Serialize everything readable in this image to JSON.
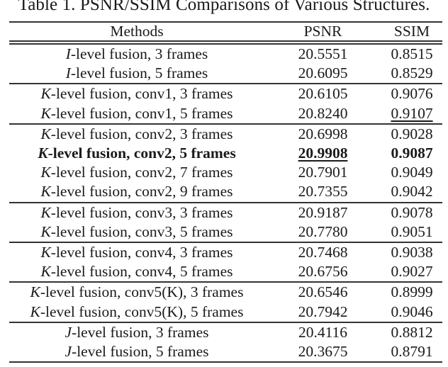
{
  "title": "Table 1. PSNR/SSIM Comparisons of Various Structures.",
  "colors": {
    "background": "#ffffff",
    "text": "#1a1a1a",
    "rule": "#333333"
  },
  "table": {
    "columns": [
      "Methods",
      "PSNR",
      "SSIM"
    ],
    "rows": [
      {
        "method_prefix": "I",
        "method_rest": "-level fusion, 3 frames",
        "psnr": "20.5551",
        "ssim": "0.8515",
        "rule_above": false,
        "bold": false,
        "psnr_underline": false,
        "ssim_underline": false
      },
      {
        "method_prefix": "I",
        "method_rest": "-level fusion, 5 frames",
        "psnr": "20.6095",
        "ssim": "0.8529",
        "rule_above": false,
        "bold": false,
        "psnr_underline": false,
        "ssim_underline": false
      },
      {
        "method_prefix": "K",
        "method_rest": "-level fusion, conv1, 3 frames",
        "psnr": "20.6105",
        "ssim": "0.9076",
        "rule_above": true,
        "bold": false,
        "psnr_underline": false,
        "ssim_underline": false
      },
      {
        "method_prefix": "K",
        "method_rest": "-level fusion, conv1, 5 frames",
        "psnr": "20.8240",
        "ssim": "0.9107",
        "rule_above": false,
        "bold": false,
        "psnr_underline": false,
        "ssim_underline": true
      },
      {
        "method_prefix": "K",
        "method_rest": "-level fusion, conv2, 3 frames",
        "psnr": "20.6998",
        "ssim": "0.9028",
        "rule_above": true,
        "bold": false,
        "psnr_underline": false,
        "ssim_underline": false
      },
      {
        "method_prefix": "K",
        "method_rest": "-level fusion, conv2, 5 frames",
        "psnr": "20.9908",
        "ssim": "0.9087",
        "rule_above": false,
        "bold": true,
        "psnr_underline": true,
        "ssim_underline": false
      },
      {
        "method_prefix": "K",
        "method_rest": "-level fusion, conv2, 7 frames",
        "psnr": "20.7901",
        "ssim": "0.9049",
        "rule_above": false,
        "bold": false,
        "psnr_underline": false,
        "ssim_underline": false
      },
      {
        "method_prefix": "K",
        "method_rest": "-level fusion, conv2, 9 frames",
        "psnr": "20.7355",
        "ssim": "0.9042",
        "rule_above": false,
        "bold": false,
        "psnr_underline": false,
        "ssim_underline": false
      },
      {
        "method_prefix": "K",
        "method_rest": "-level fusion, conv3, 3 frames",
        "psnr": "20.9187",
        "ssim": "0.9078",
        "rule_above": true,
        "bold": false,
        "psnr_underline": false,
        "ssim_underline": false
      },
      {
        "method_prefix": "K",
        "method_rest": "-level fusion, conv3, 5 frames",
        "psnr": "20.7780",
        "ssim": "0.9051",
        "rule_above": false,
        "bold": false,
        "psnr_underline": false,
        "ssim_underline": false
      },
      {
        "method_prefix": "K",
        "method_rest": "-level fusion, conv4, 3 frames",
        "psnr": "20.7468",
        "ssim": "0.9038",
        "rule_above": true,
        "bold": false,
        "psnr_underline": false,
        "ssim_underline": false
      },
      {
        "method_prefix": "K",
        "method_rest": "-level fusion, conv4, 5 frames",
        "psnr": "20.6756",
        "ssim": "0.9027",
        "rule_above": false,
        "bold": false,
        "psnr_underline": false,
        "ssim_underline": false
      },
      {
        "method_prefix": "K",
        "method_rest": "-level fusion, conv5(K), 3 frames",
        "psnr": "20.6546",
        "ssim": "0.8999",
        "rule_above": true,
        "bold": false,
        "psnr_underline": false,
        "ssim_underline": false
      },
      {
        "method_prefix": "K",
        "method_rest": "-level fusion, conv5(K), 5 frames",
        "psnr": "20.7942",
        "ssim": "0.9046",
        "rule_above": false,
        "bold": false,
        "psnr_underline": false,
        "ssim_underline": false
      },
      {
        "method_prefix": "J",
        "method_rest": "-level fusion, 3 frames",
        "psnr": "20.4116",
        "ssim": "0.8812",
        "rule_above": true,
        "bold": false,
        "psnr_underline": false,
        "ssim_underline": false
      },
      {
        "method_prefix": "J",
        "method_rest": "-level fusion, 5 frames",
        "psnr": "20.3675",
        "ssim": "0.8791",
        "rule_above": false,
        "bold": false,
        "psnr_underline": false,
        "ssim_underline": false
      }
    ]
  }
}
